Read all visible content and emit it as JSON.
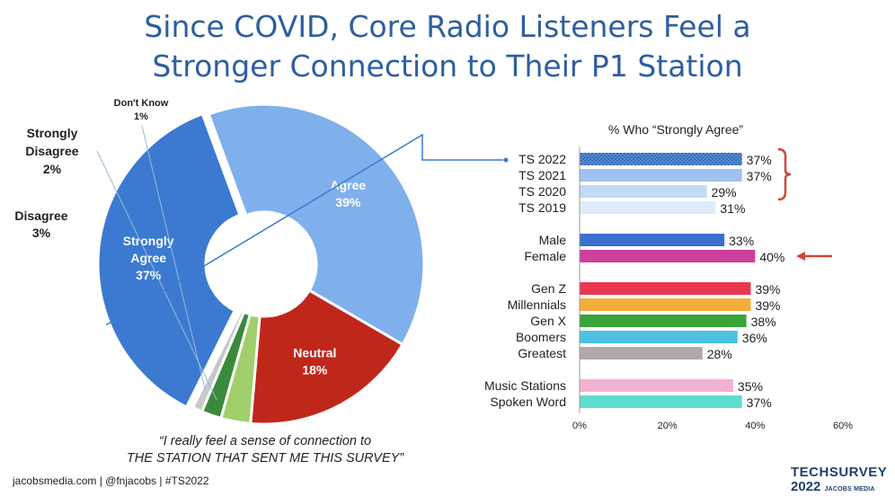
{
  "title": {
    "line1": "Since COVID, Core Radio Listeners Feel a",
    "line2": "Stronger Connection to Their P1 Station"
  },
  "chart_data": [
    {
      "type": "pie",
      "slices": [
        {
          "label": "Strongly Agree",
          "value": 37,
          "display": "37%",
          "color": "#3b7ad0"
        },
        {
          "label": "Agree",
          "value": 39,
          "display": "39%",
          "color": "#7fb0ec"
        },
        {
          "label": "Neutral",
          "value": 18,
          "display": "18%",
          "color": "#c0271b"
        },
        {
          "label": "Disagree",
          "value": 3,
          "display": "3%",
          "color": "#a1cf6b"
        },
        {
          "label": "Strongly Disagree",
          "value": 2,
          "display": "2%",
          "color": "#3b8a3c"
        },
        {
          "label": "Don't Know",
          "value": 1,
          "display": "1%",
          "color": "#c8c8c8"
        }
      ]
    },
    {
      "type": "bar",
      "orientation": "horizontal",
      "title": "% Who “Strongly Agree”",
      "xlim": [
        0,
        60
      ],
      "xticks": [
        "0%",
        "20%",
        "40%",
        "60%"
      ],
      "groups": [
        {
          "bars": [
            {
              "label": "TS 2022",
              "value": 37,
              "display": "37%",
              "color": "#4a7fcf",
              "pattern": "dots"
            },
            {
              "label": "TS 2021",
              "value": 37,
              "display": "37%",
              "color": "#9fc2ee"
            },
            {
              "label": "TS 2020",
              "value": 29,
              "display": "29%",
              "color": "#c3daf6"
            },
            {
              "label": "TS 2019",
              "value": 31,
              "display": "31%",
              "color": "#deebfb"
            }
          ]
        },
        {
          "bars": [
            {
              "label": "Male",
              "value": 33,
              "display": "33%",
              "color": "#3b6fcf"
            },
            {
              "label": "Female",
              "value": 40,
              "display": "40%",
              "color": "#cc3f9b"
            }
          ]
        },
        {
          "bars": [
            {
              "label": "Gen Z",
              "value": 39,
              "display": "39%",
              "color": "#e8384f"
            },
            {
              "label": "Millennials",
              "value": 39,
              "display": "39%",
              "color": "#f2ad3b"
            },
            {
              "label": "Gen X",
              "value": 38,
              "display": "38%",
              "color": "#3aa33a"
            },
            {
              "label": "Boomers",
              "value": 36,
              "display": "36%",
              "color": "#4cc1e0"
            },
            {
              "label": "Greatest",
              "value": 28,
              "display": "28%",
              "color": "#b0a8ac"
            }
          ]
        },
        {
          "bars": [
            {
              "label": "Music Stations",
              "value": 35,
              "display": "35%",
              "color": "#f2b3d2"
            },
            {
              "label": "Spoken Word",
              "value": 37,
              "display": "37%",
              "color": "#5fdcd0"
            }
          ]
        }
      ],
      "highlight_bracket_on": [
        "TS 2022",
        "TS 2021",
        "TS 2020"
      ],
      "arrow_on": "Female"
    }
  ],
  "quote": {
    "line1": "“I really feel a sense of connection to",
    "line2": "THE STATION THAT SENT ME THIS SURVEY”"
  },
  "footer": "jacobsmedia.com   |   @fnjacobs   |   #TS2022",
  "brand": {
    "top": "TECHSURVEY",
    "year": "2022",
    "sub": "JACOBS MEDIA"
  },
  "colors": {
    "title": "#2e5f9e",
    "bracket": "#d0453b",
    "arrow": "#d0453b",
    "connector": "#3b7ad0"
  }
}
